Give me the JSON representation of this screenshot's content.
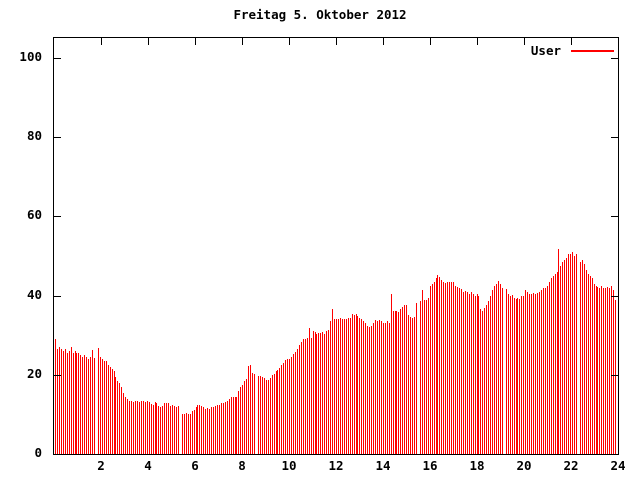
{
  "chart_data": {
    "type": "bar",
    "title": "Freitag 5. Oktober 2012",
    "xlabel": "",
    "ylabel": "",
    "x_unit": "hour of day",
    "sample_interval_minutes": 5,
    "xlim": [
      0,
      24
    ],
    "ylim": [
      0,
      105
    ],
    "xticks": [
      2,
      4,
      6,
      8,
      10,
      12,
      14,
      16,
      18,
      20,
      22,
      24
    ],
    "yticks": [
      0,
      20,
      40,
      60,
      80,
      100
    ],
    "grid": false,
    "legend_position": "top-right-inside",
    "bar_color": "#ff0000",
    "frame_color": "#000000",
    "background_color": "#ffffff",
    "note_zero_values_are_gaps": "value 0 = missing sample (white gap in plot)",
    "series": [
      {
        "name": "User",
        "color": "#ff0000",
        "values": [
          29,
          26.5,
          27,
          26.5,
          26,
          26.5,
          25.5,
          26,
          27,
          25.5,
          26,
          25.5,
          25.5,
          25,
          24.5,
          25,
          24.5,
          24,
          24.5,
          26.3,
          24.2,
          0,
          26.8,
          24.5,
          24,
          23.5,
          23.5,
          22.5,
          22,
          21.5,
          21,
          19.5,
          18.5,
          18,
          17,
          15.5,
          14.5,
          13.8,
          13.3,
          13.5,
          13.2,
          13.3,
          13.5,
          13.2,
          13.3,
          13.4,
          13.2,
          13.3,
          13.2,
          12.6,
          12.5,
          13.2,
          13,
          12.2,
          12,
          12.2,
          12.9,
          13,
          12.9,
          12.2,
          12.3,
          12.2,
          12,
          12.2,
          0,
          10.2,
          10,
          10.3,
          10.2,
          10,
          10.8,
          11,
          11.8,
          12.3,
          12.5,
          12.2,
          11.8,
          11.4,
          11.5,
          11.4,
          11.8,
          12,
          12.2,
          12.3,
          12.5,
          12.8,
          13,
          13.2,
          13.5,
          14,
          14.3,
          14.5,
          14.3,
          14.5,
          16,
          17,
          17.5,
          18.5,
          19,
          22.3,
          22.4,
          20.5,
          20.3,
          0,
          19.8,
          19.7,
          19.5,
          19.3,
          18.6,
          18.8,
          19.3,
          19.9,
          20.3,
          21,
          21.2,
          21.8,
          22.5,
          23,
          23.8,
          24,
          24,
          24.5,
          25.2,
          25.8,
          26.5,
          27.5,
          28.3,
          29,
          29.1,
          29.2,
          31.8,
          29.4,
          31,
          30.8,
          30.4,
          30.5,
          30.6,
          30.8,
          30.4,
          31,
          31.3,
          33.5,
          36.5,
          34.2,
          34.2,
          34,
          34.3,
          34.2,
          34,
          34.2,
          34.4,
          34.3,
          35.4,
          35.2,
          35.4,
          34.8,
          34.4,
          34,
          33.5,
          33,
          32.2,
          32,
          32.2,
          33,
          33.8,
          33.6,
          33.8,
          33.5,
          33.2,
          33,
          33.5,
          33,
          40.5,
          36,
          36.2,
          36,
          35.8,
          36.5,
          37.2,
          37.5,
          37.5,
          35,
          34.5,
          34.3,
          34.5,
          38,
          0,
          38.7,
          41.4,
          38.8,
          39,
          39.5,
          42.4,
          43,
          43.3,
          44.5,
          45.3,
          44.6,
          43.9,
          43.5,
          43.2,
          43.5,
          43.3,
          43.5,
          43.4,
          42.4,
          42.2,
          42,
          41.6,
          41,
          41.2,
          40.8,
          40.4,
          41,
          40.3,
          39.9,
          40.3,
          40,
          36.5,
          36,
          36.8,
          37.5,
          38.6,
          39.9,
          41.5,
          42.3,
          42.9,
          43.7,
          42.9,
          42,
          0,
          41.6,
          40.5,
          39.8,
          40.2,
          39.5,
          39.2,
          39.3,
          39.2,
          40,
          40,
          41.3,
          40.9,
          40.3,
          40.5,
          40.6,
          40.4,
          40.6,
          41,
          41.5,
          41.8,
          42,
          42.5,
          43.5,
          44.5,
          45,
          45.5,
          46,
          51.7,
          47.5,
          48.5,
          49,
          49.5,
          50.5,
          50.5,
          51,
          50,
          50.5,
          0,
          48.5,
          49,
          48,
          46.5,
          45.5,
          45,
          44.5,
          43,
          42.5,
          42.2,
          42,
          42.3,
          42,
          41.8,
          42.2,
          42,
          42.5,
          41.5,
          39
        ]
      }
    ]
  }
}
